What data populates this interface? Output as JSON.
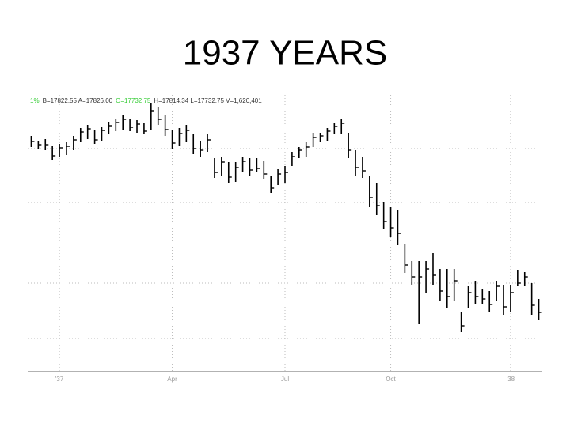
{
  "chart_data": {
    "type": "ohlc",
    "title": "1937 YEARS",
    "info": [
      {
        "text": "1%",
        "color": "#33cc33"
      },
      {
        "text": "B=17822.55 A=17826.00",
        "color": "#333333"
      },
      {
        "text": "O=17732.75",
        "color": "#33cc33"
      },
      {
        "text": "H=17814.34 L=17732.75 V=1,620,401",
        "color": "#333333"
      }
    ],
    "categories": [
      null,
      null,
      null,
      null,
      null,
      null,
      null,
      null,
      null,
      null,
      null,
      null,
      null,
      null,
      null,
      null,
      null,
      null,
      null,
      null,
      null,
      null,
      null,
      null,
      null,
      null,
      null,
      null,
      null,
      null,
      null,
      null,
      null,
      null,
      null,
      null,
      null,
      null,
      null,
      null,
      null,
      null,
      null,
      null,
      null,
      null,
      null,
      null,
      null,
      null,
      null,
      null,
      null,
      null,
      null,
      null,
      null,
      null,
      null,
      null,
      null,
      null,
      null,
      null,
      null,
      null,
      null,
      null,
      null,
      null,
      null,
      null,
      null
    ],
    "high": [
      298,
      292,
      294,
      285,
      288,
      290,
      298,
      308,
      312,
      306,
      310,
      316,
      320,
      324,
      320,
      318,
      315,
      340,
      335,
      325,
      305,
      308,
      312,
      300,
      292,
      300,
      270,
      272,
      265,
      265,
      272,
      270,
      270,
      266,
      248,
      256,
      260,
      278,
      284,
      290,
      302,
      302,
      308,
      314,
      320,
      302,
      280,
      272,
      248,
      238,
      214,
      208,
      205,
      162,
      140,
      140,
      140,
      150,
      130,
      130,
      130,
      75,
      108,
      115,
      105,
      102,
      115,
      110,
      110,
      128,
      126,
      112,
      92
    ],
    "low": [
      284,
      282,
      280,
      268,
      272,
      274,
      280,
      290,
      294,
      288,
      292,
      300,
      304,
      306,
      304,
      302,
      300,
      305,
      312,
      298,
      282,
      285,
      290,
      275,
      272,
      278,
      245,
      248,
      238,
      240,
      252,
      248,
      252,
      244,
      226,
      236,
      238,
      260,
      270,
      272,
      284,
      290,
      292,
      300,
      300,
      270,
      248,
      245,
      208,
      198,
      180,
      170,
      160,
      125,
      110,
      60,
      100,
      110,
      90,
      80,
      90,
      50,
      80,
      85,
      85,
      75,
      90,
      72,
      75,
      108,
      108,
      72,
      65
    ],
    "close": [
      291,
      287,
      287,
      273,
      283,
      285,
      293,
      303,
      307,
      293,
      305,
      311,
      315,
      319,
      309,
      313,
      304,
      330,
      319,
      306,
      289,
      301,
      305,
      282,
      280,
      293,
      252,
      265,
      246,
      258,
      266,
      255,
      257,
      250,
      232,
      250,
      252,
      272,
      280,
      284,
      296,
      298,
      304,
      310,
      314,
      280,
      258,
      254,
      220,
      210,
      190,
      182,
      175,
      135,
      120,
      120,
      130,
      122,
      102,
      95,
      115,
      58,
      100,
      95,
      92,
      85,
      108,
      82,
      100,
      112,
      120,
      84,
      75
    ],
    "color": "#000000",
    "ylim": [
      0,
      350
    ],
    "yticks": [
      42,
      112,
      214,
      282
    ],
    "grid": true,
    "xticks": [
      {
        "value": 4,
        "label": "'37"
      },
      {
        "value": 20,
        "label": "Apr"
      },
      {
        "value": 36,
        "label": "Jul"
      },
      {
        "value": 51,
        "label": "Oct"
      },
      {
        "value": 68,
        "label": "'38"
      }
    ]
  }
}
